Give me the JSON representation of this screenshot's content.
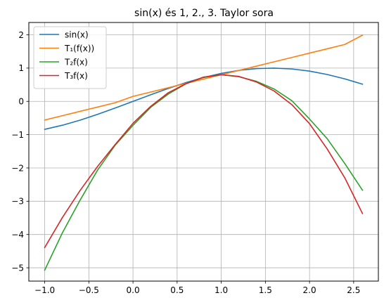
{
  "chart_data": {
    "type": "line",
    "title": "sin(x) és 1, 2., 3. Taylor sora",
    "xlabel": "",
    "ylabel": "",
    "xlim": [
      -1.18,
      2.78
    ],
    "ylim": [
      -5.4,
      2.37
    ],
    "grid": true,
    "legend_position": "top-left",
    "xticks": [
      -1.0,
      -0.5,
      0.0,
      0.5,
      1.0,
      1.5,
      2.0,
      2.5
    ],
    "xtick_labels": [
      "−1.0",
      "−0.5",
      "0.0",
      "0.5",
      "1.0",
      "1.5",
      "2.0",
      "2.5"
    ],
    "yticks": [
      -5,
      -4,
      -3,
      -2,
      -1,
      0,
      1,
      2
    ],
    "ytick_labels": [
      "−5",
      "−4",
      "−3",
      "−2",
      "−1",
      "0",
      "1",
      "2"
    ],
    "x": [
      -1.0,
      -0.8,
      -0.6,
      -0.4,
      -0.2,
      0.0,
      0.2,
      0.4,
      0.6,
      0.8,
      1.0,
      1.2,
      1.4,
      1.6,
      1.8,
      2.0,
      2.2,
      2.4,
      2.6
    ],
    "series": [
      {
        "name": "sin(x)",
        "color": "#1f77b4",
        "values": [
          -0.841,
          -0.717,
          -0.565,
          -0.389,
          -0.199,
          0.0,
          0.199,
          0.389,
          0.565,
          0.717,
          0.841,
          0.932,
          0.985,
          1.0,
          0.974,
          0.909,
          0.808,
          0.675,
          0.516
        ]
      },
      {
        "name": "T₁(f(x))",
        "color": "#ff7f0e",
        "values": [
          -0.56,
          -0.43,
          -0.3,
          -0.17,
          -0.04,
          0.15,
          0.28,
          0.41,
          0.54,
          0.67,
          0.8,
          0.93,
          1.06,
          1.19,
          1.32,
          1.45,
          1.58,
          1.71,
          1.99
        ]
      },
      {
        "name": "T₂f(x)",
        "color": "#2ca02c",
        "values": [
          -5.07,
          -3.95,
          -2.97,
          -2.06,
          -1.31,
          -0.72,
          -0.18,
          0.22,
          0.53,
          0.72,
          0.8,
          0.74,
          0.6,
          0.37,
          0.02,
          -0.53,
          -1.12,
          -1.87,
          -2.67
        ]
      },
      {
        "name": "T₃f(x)",
        "color": "#d62728",
        "values": [
          -4.39,
          -3.49,
          -2.68,
          -1.95,
          -1.29,
          -0.66,
          -0.15,
          0.26,
          0.53,
          0.73,
          0.8,
          0.75,
          0.58,
          0.31,
          -0.1,
          -0.67,
          -1.43,
          -2.3,
          -3.37
        ]
      }
    ]
  }
}
